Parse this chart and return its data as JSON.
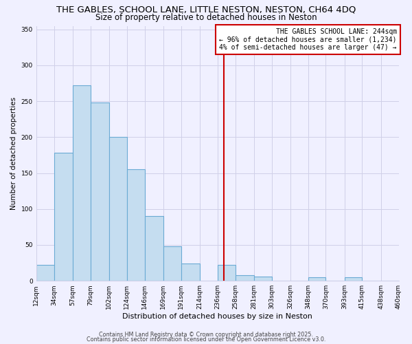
{
  "title": "THE GABLES, SCHOOL LANE, LITTLE NESTON, NESTON, CH64 4DQ",
  "subtitle": "Size of property relative to detached houses in Neston",
  "xlabel": "Distribution of detached houses by size in Neston",
  "ylabel": "Number of detached properties",
  "bar_color": "#c5ddf0",
  "bar_edge_color": "#6aaad4",
  "background_color": "#f0f0ff",
  "grid_color": "#d0d0e8",
  "bin_edges": [
    12,
    34,
    57,
    79,
    102,
    124,
    146,
    169,
    191,
    214,
    236,
    258,
    281,
    303,
    326,
    348,
    370,
    393,
    415,
    438,
    460
  ],
  "bin_labels": [
    "12sqm",
    "34sqm",
    "57sqm",
    "79sqm",
    "102sqm",
    "124sqm",
    "146sqm",
    "169sqm",
    "191sqm",
    "214sqm",
    "236sqm",
    "258sqm",
    "281sqm",
    "303sqm",
    "326sqm",
    "348sqm",
    "370sqm",
    "393sqm",
    "415sqm",
    "438sqm",
    "460sqm"
  ],
  "counts": [
    22,
    178,
    272,
    248,
    200,
    155,
    90,
    48,
    24,
    0,
    22,
    8,
    6,
    0,
    0,
    5,
    0,
    5,
    0,
    0
  ],
  "vline_x": 244,
  "vline_color": "#cc0000",
  "annotation_line1": "THE GABLES SCHOOL LANE: 244sqm",
  "annotation_line2": "← 96% of detached houses are smaller (1,234)",
  "annotation_line3": "4% of semi-detached houses are larger (47) →",
  "ylim": [
    0,
    355
  ],
  "yticks": [
    0,
    50,
    100,
    150,
    200,
    250,
    300,
    350
  ],
  "footer1": "Contains HM Land Registry data © Crown copyright and database right 2025.",
  "footer2": "Contains public sector information licensed under the Open Government Licence v3.0."
}
